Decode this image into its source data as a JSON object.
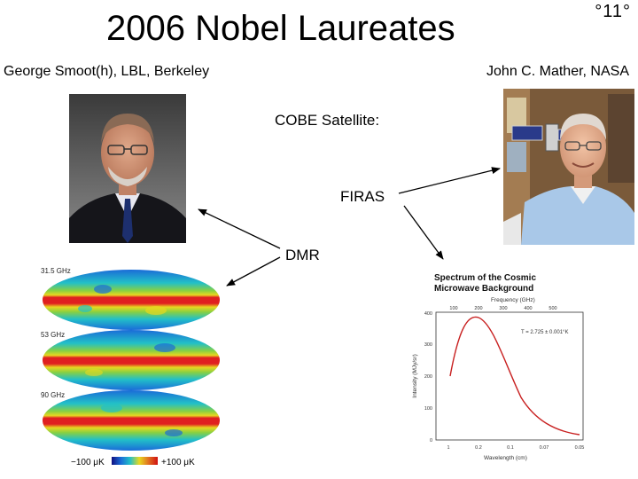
{
  "slide": {
    "title": "2006 Nobel Laureates",
    "slide_number": "°11°",
    "left_laureate": "George Smoot(h), LBL, Berkeley",
    "right_laureate": "John C. Mather, NASA",
    "cobe_label": "COBE Satellite:",
    "firas_label": "FIRAS",
    "dmr_label": "DMR"
  },
  "maps": {
    "freq_labels": [
      "31.5 GHz",
      "53 GHz",
      "90 GHz"
    ],
    "scale_min": "−100 μK",
    "scale_max": "+100 μK"
  },
  "spectrum": {
    "title_line1": "Spectrum of the Cosmic",
    "title_line2": "Microwave Background",
    "top_axis_label": "Frequency (GHz)",
    "top_ticks": [
      "100",
      "200",
      "300",
      "400",
      "500"
    ],
    "y_axis_label": "Intensity (MJy/sr)",
    "y_ticks": [
      "0",
      "100",
      "200",
      "300",
      "400"
    ],
    "x_axis_label": "Wavelength (cm)",
    "x_ticks": [
      "1",
      "0.2",
      "0.1",
      "0.07",
      "0.05"
    ],
    "temp_annotation": "T = 2.725 ± 0.001°K",
    "colors": {
      "curve": "#c82020",
      "border": "#333333"
    }
  }
}
